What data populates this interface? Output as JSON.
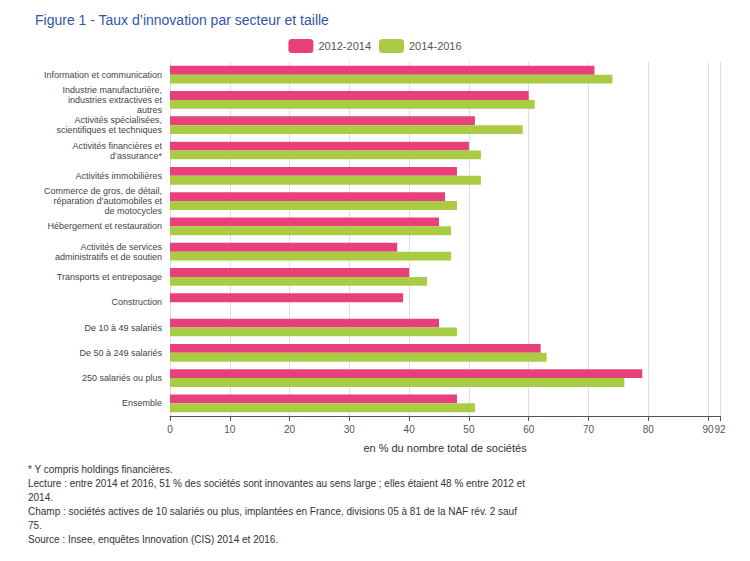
{
  "chart_data": {
    "type": "bar",
    "orientation": "horizontal",
    "title": "Figure 1 - Taux d’innovation par secteur et taille",
    "categories": [
      "Information et communication",
      "Industrie manufacturière,\nindustries extractives et\nautres",
      "Activités spécialisées,\nscientifiques et techniques",
      "Activités financières et\nd’assurance*",
      "Activités immobilières",
      "Commerce de gros, de détail,\nréparation d’automobiles et\nde motocycles",
      "Hébergement et restauration",
      "Activités de services\nadministratifs et de soutien",
      "Transports et entreposage",
      "Construction",
      "De 10 à 49 salariés",
      "De 50 à 249 salariés",
      "250 salariés ou plus",
      "Ensemble"
    ],
    "series": [
      {
        "name": "2012-2014",
        "color": "#E8407A",
        "values": [
          71,
          60,
          51,
          50,
          48,
          46,
          45,
          38,
          40,
          39,
          45,
          62,
          79,
          48
        ]
      },
      {
        "name": "2014-2016",
        "color": "#AACC44",
        "values": [
          74,
          61,
          59,
          52,
          52,
          48,
          47,
          47,
          43,
          null,
          48,
          63,
          76,
          51
        ]
      }
    ],
    "xlabel": "en % du nombre total de sociétés",
    "xlim": [
      0,
      92
    ],
    "xticks": [
      0,
      10,
      20,
      30,
      40,
      50,
      60,
      70,
      80,
      90
    ],
    "grid": true,
    "legend": "top",
    "annotations": [
      "* Y compris holdings financières.",
      "Lecture : entre 2014 et 2016, 51 % des sociétés sont innovantes au sens large ; elles étaient 48 % entre 2012 et",
      "2014.",
      "Champ : sociétés actives de 10 salariés ou plus, implantées en France, divisions 05 à 81 de la NAF rév. 2 sauf",
      "75.",
      "Source : Insee, enquêtes Innovation (CIS) 2014 et 2016."
    ]
  }
}
